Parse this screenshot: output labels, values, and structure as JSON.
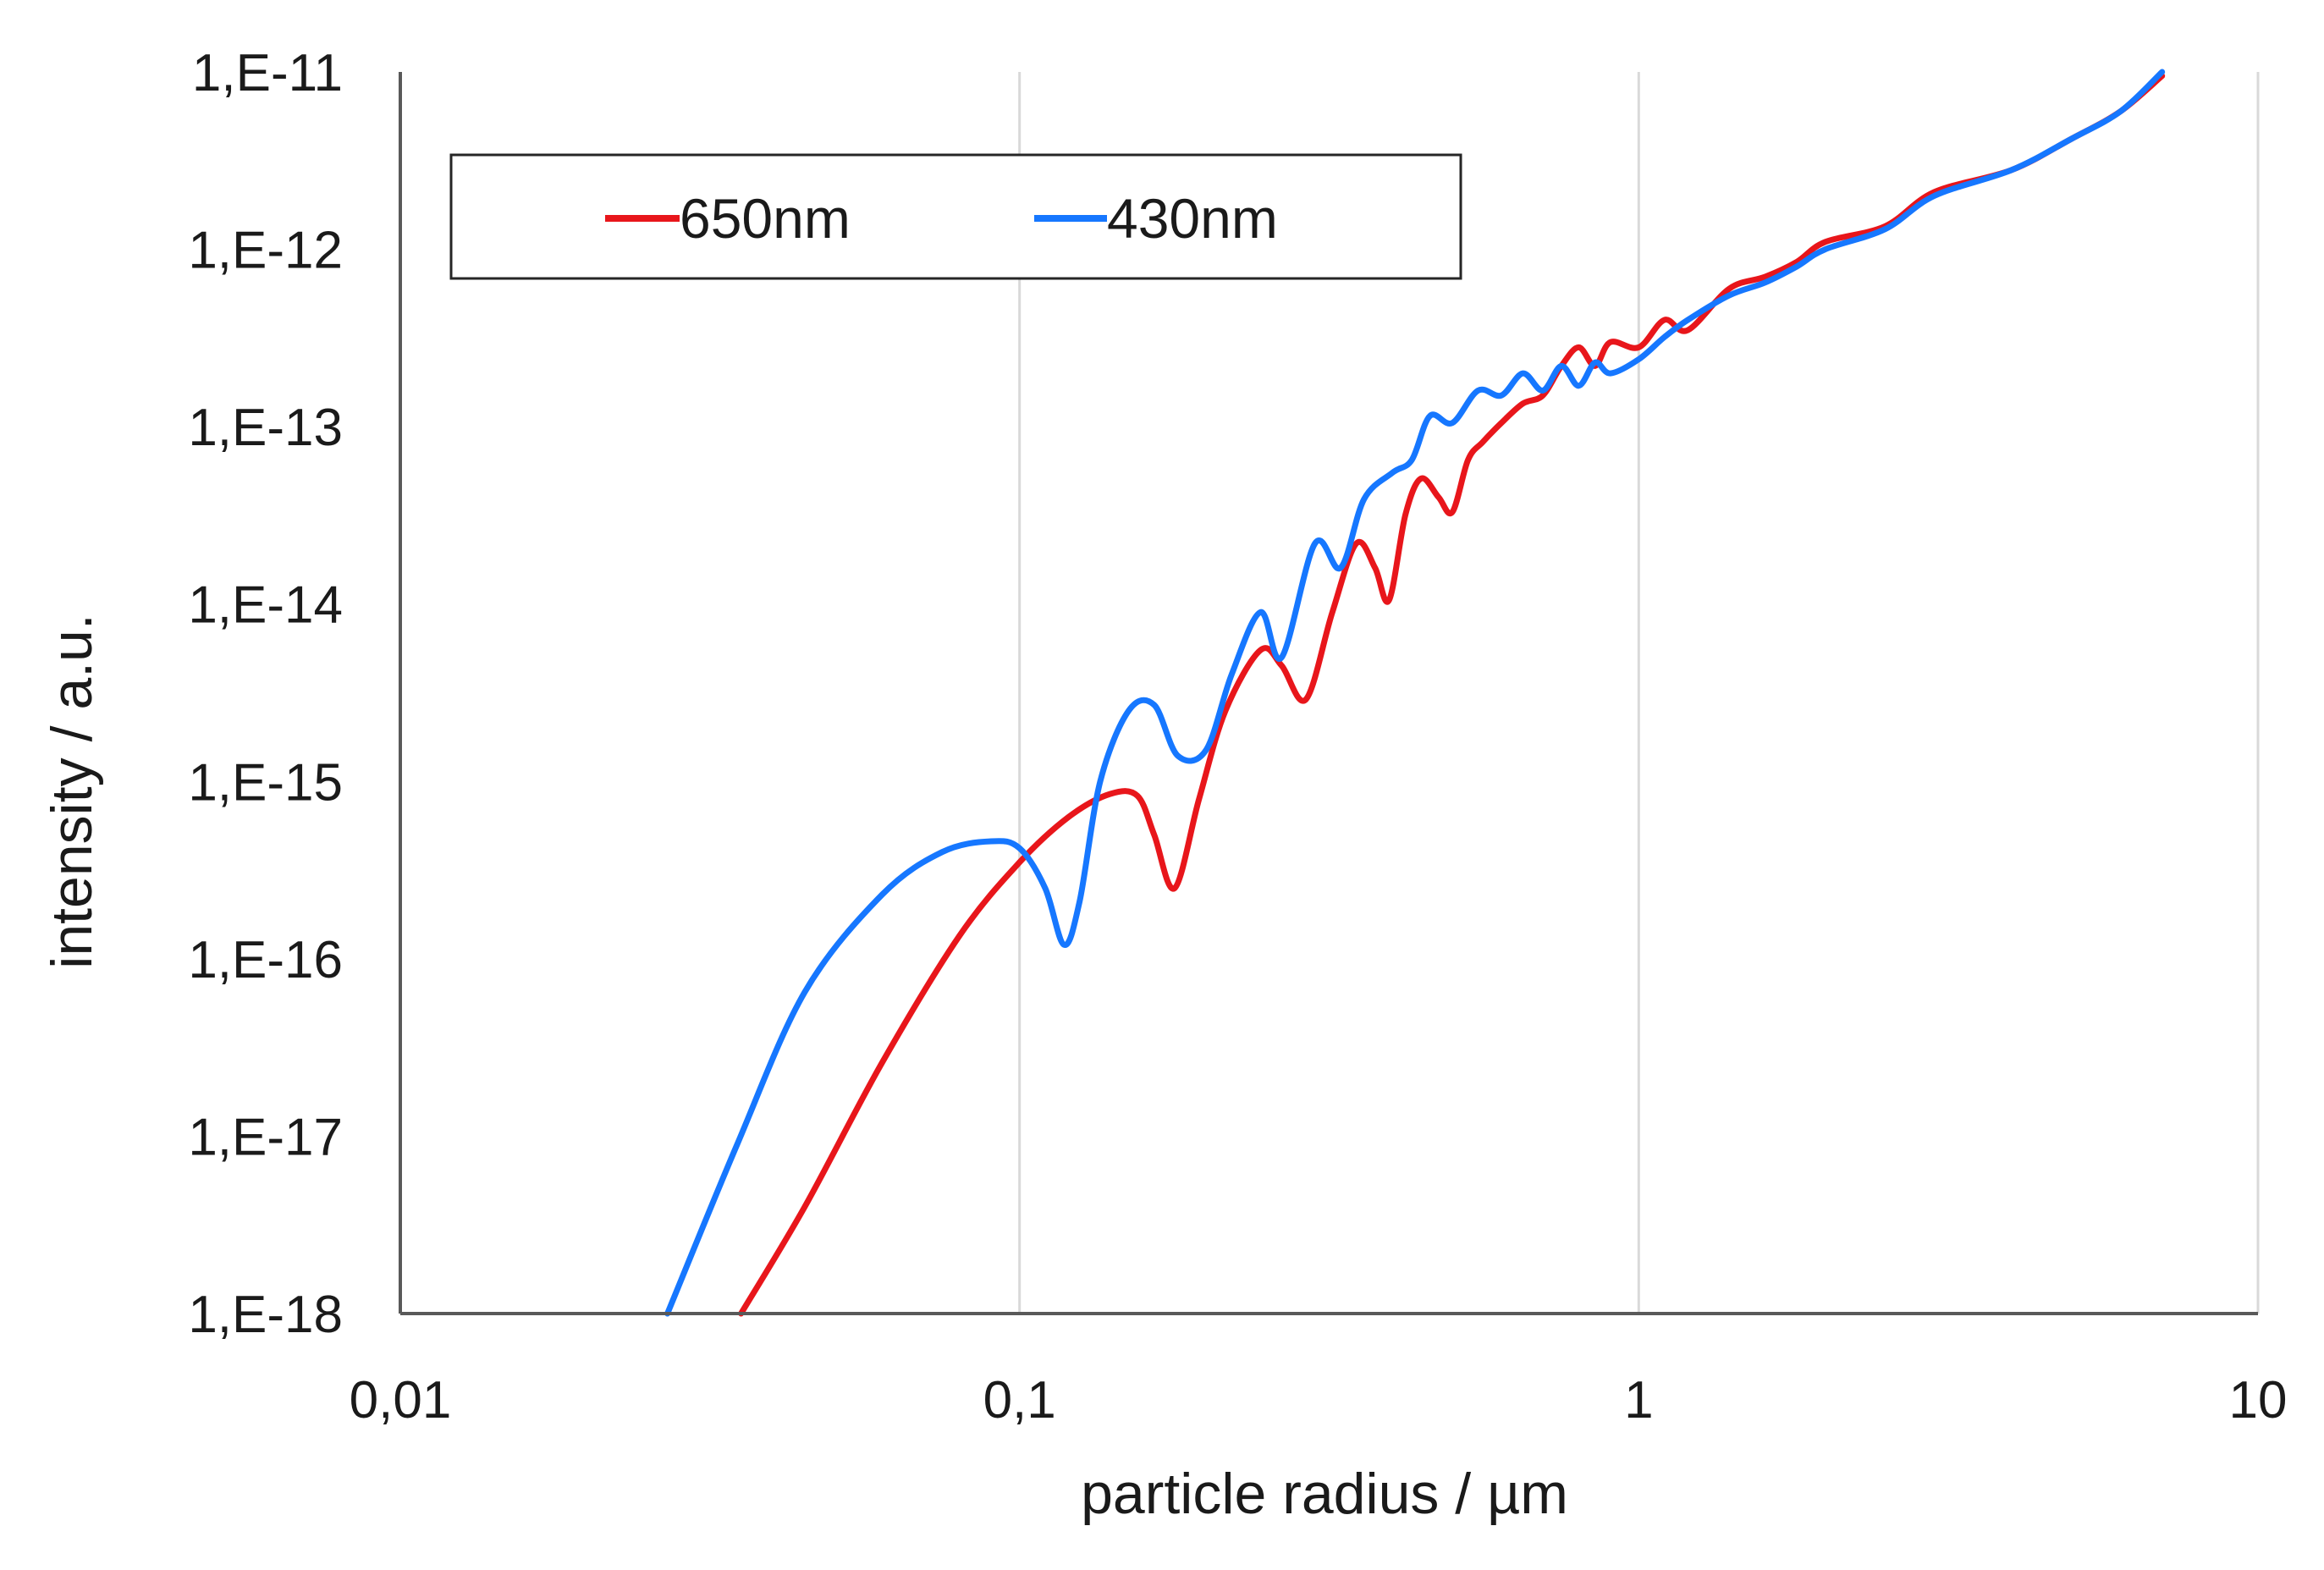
{
  "chart_data": {
    "type": "line",
    "title": "",
    "xlabel": "particle radius / µm",
    "ylabel": "intensity  / a.u.",
    "x_scale": "log",
    "y_scale": "log",
    "xlim": [
      0.01,
      10
    ],
    "ylim": [
      1e-18,
      1e-11
    ],
    "x_ticks": [
      {
        "value": 0.01,
        "label": "0,01"
      },
      {
        "value": 0.1,
        "label": "0,1"
      },
      {
        "value": 1,
        "label": "1"
      },
      {
        "value": 10,
        "label": "10"
      }
    ],
    "y_ticks": [
      {
        "value": 1e-11,
        "label": "1,E-11"
      },
      {
        "value": 1e-12,
        "label": "1,E-12"
      },
      {
        "value": 1e-13,
        "label": "1,E-13"
      },
      {
        "value": 1e-14,
        "label": "1,E-14"
      },
      {
        "value": 1e-15,
        "label": "1,E-15"
      },
      {
        "value": 1e-16,
        "label": "1,E-16"
      },
      {
        "value": 1e-17,
        "label": "1,E-17"
      },
      {
        "value": 1e-18,
        "label": "1,E-18"
      }
    ],
    "grid": "vertical",
    "legend_position": "top-left",
    "series": [
      {
        "name": "650nm",
        "color": "#e8161b",
        "x": [
          0.0355,
          0.045,
          0.06,
          0.08,
          0.1,
          0.12,
          0.14,
          0.155,
          0.165,
          0.178,
          0.195,
          0.215,
          0.245,
          0.265,
          0.29,
          0.32,
          0.35,
          0.375,
          0.395,
          0.42,
          0.445,
          0.475,
          0.5,
          0.53,
          0.56,
          0.6,
          0.65,
          0.7,
          0.75,
          0.8,
          0.85,
          0.9,
          1.0,
          1.1,
          1.2,
          1.4,
          1.6,
          1.8,
          2.0,
          2.5,
          3.0,
          4.0,
          5.0,
          6.0,
          7.0
        ],
        "y": [
          1e-18,
          4e-18,
          2.6e-17,
          1.35e-16,
          3.5e-16,
          6.3e-16,
          8.5e-16,
          8.3e-16,
          5e-16,
          2.5e-16,
          8e-16,
          2.5e-15,
          5.5e-15,
          4.5e-15,
          2.9e-15,
          9e-15,
          2.2e-14,
          1.6e-14,
          1.05e-14,
          3.2e-14,
          5.1e-14,
          4e-14,
          3.3e-14,
          6.5e-14,
          8.2e-14,
          1.05e-13,
          1.35e-13,
          1.5e-13,
          2.2e-13,
          2.8e-13,
          2.2e-13,
          3e-13,
          2.8e-13,
          4e-13,
          3.5e-13,
          6e-13,
          7e-13,
          8.5e-13,
          1.1e-12,
          1.35e-12,
          2.1e-12,
          2.8e-12,
          4.2e-12,
          6e-12,
          9.5e-12
        ]
      },
      {
        "name": "430nm",
        "color": "#1677ff",
        "x": [
          0.027,
          0.035,
          0.045,
          0.06,
          0.075,
          0.09,
          0.1,
          0.11,
          0.118,
          0.125,
          0.135,
          0.15,
          0.165,
          0.18,
          0.2,
          0.22,
          0.245,
          0.265,
          0.3,
          0.33,
          0.36,
          0.4,
          0.43,
          0.46,
          0.5,
          0.55,
          0.6,
          0.65,
          0.7,
          0.75,
          0.8,
          0.85,
          0.9,
          1.0,
          1.1,
          1.2,
          1.4,
          1.6,
          1.8,
          2.0,
          2.5,
          3.0,
          4.0,
          5.0,
          6.0,
          7.0
        ],
        "y": [
          1e-18,
          9e-18,
          6.5e-17,
          2.3e-16,
          4e-16,
          4.6e-16,
          4.2e-16,
          2.5e-16,
          1.2e-16,
          2.1e-16,
          1e-15,
          2.5e-15,
          2.7e-15,
          1.4e-15,
          1.5e-15,
          4e-15,
          9e-15,
          5e-15,
          2.2e-14,
          1.6e-14,
          3.9e-14,
          5.5e-14,
          6.5e-14,
          1.15e-13,
          1.05e-13,
          1.6e-13,
          1.5e-13,
          2e-13,
          1.6e-13,
          2.2e-13,
          1.7e-13,
          2.3e-13,
          2e-13,
          2.4e-13,
          3.2e-13,
          4e-13,
          5.5e-13,
          6.5e-13,
          8e-13,
          1e-12,
          1.3e-12,
          2e-12,
          2.8e-12,
          4.2e-12,
          6e-12,
          1e-11
        ]
      }
    ]
  }
}
